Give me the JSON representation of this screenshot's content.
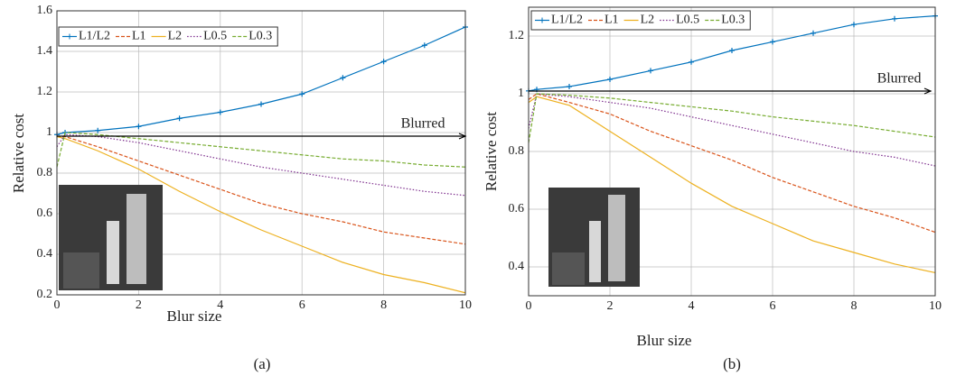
{
  "chart_data": [
    {
      "type": "line",
      "label": "(a)",
      "xlabel": "Blur size",
      "ylabel": "Relative cost",
      "annotation": "Blurred",
      "x": [
        0,
        0.2,
        1,
        2,
        3,
        4,
        5,
        6,
        7,
        8,
        9,
        10
      ],
      "xlim": [
        0,
        10
      ],
      "xticks": [
        0,
        2,
        4,
        6,
        8,
        10
      ],
      "ylim": [
        0.2,
        1.6
      ],
      "yticks": [
        0.2,
        0.4,
        0.6,
        0.8,
        1.0,
        1.2,
        1.4,
        1.6
      ],
      "grid": true,
      "legend": "top-left",
      "series": [
        {
          "name": "L1/L2",
          "color": "#0072bd",
          "dash": "solid",
          "marker": "+",
          "values": [
            0.99,
            1.0,
            1.01,
            1.03,
            1.07,
            1.1,
            1.14,
            1.19,
            1.27,
            1.35,
            1.43,
            1.52
          ]
        },
        {
          "name": "L1",
          "color": "#d95319",
          "dash": "dashed",
          "values": [
            0.98,
            0.98,
            0.93,
            0.86,
            0.79,
            0.72,
            0.65,
            0.6,
            0.56,
            0.51,
            0.48,
            0.45
          ]
        },
        {
          "name": "L2",
          "color": "#edb120",
          "dash": "solid",
          "values": [
            0.98,
            0.97,
            0.91,
            0.82,
            0.71,
            0.61,
            0.52,
            0.44,
            0.36,
            0.3,
            0.26,
            0.21
          ]
        },
        {
          "name": "L0.5",
          "color": "#7e2f8e",
          "dash": "dotted",
          "values": [
            0.93,
            0.99,
            0.98,
            0.95,
            0.91,
            0.87,
            0.83,
            0.8,
            0.77,
            0.74,
            0.71,
            0.69
          ]
        },
        {
          "name": "L0.3",
          "color": "#77ac30",
          "dash": "dashed",
          "values": [
            0.83,
            1.0,
            0.99,
            0.97,
            0.95,
            0.93,
            0.91,
            0.89,
            0.87,
            0.86,
            0.84,
            0.83
          ]
        }
      ]
    },
    {
      "type": "line",
      "label": "(b)",
      "xlabel": "Blur size",
      "ylabel": "Relative cost",
      "annotation": "Blurred",
      "x": [
        0,
        0.2,
        1,
        2,
        3,
        4,
        5,
        6,
        7,
        8,
        9,
        10
      ],
      "xlim": [
        0,
        10
      ],
      "xticks": [
        0,
        2,
        4,
        6,
        8,
        10
      ],
      "ylim": [
        0.3,
        1.3
      ],
      "yticks": [
        0.4,
        0.6,
        0.8,
        1.0,
        1.2
      ],
      "grid": true,
      "legend": "top-left",
      "series": [
        {
          "name": "L1/L2",
          "color": "#0072bd",
          "dash": "solid",
          "marker": "+",
          "values": [
            1.01,
            1.015,
            1.025,
            1.05,
            1.08,
            1.11,
            1.15,
            1.18,
            1.21,
            1.24,
            1.26,
            1.27
          ]
        },
        {
          "name": "L1",
          "color": "#d95319",
          "dash": "dashed",
          "values": [
            0.98,
            1.0,
            0.97,
            0.93,
            0.87,
            0.82,
            0.77,
            0.71,
            0.66,
            0.61,
            0.57,
            0.52
          ]
        },
        {
          "name": "L2",
          "color": "#edb120",
          "dash": "solid",
          "values": [
            0.97,
            0.99,
            0.96,
            0.87,
            0.78,
            0.69,
            0.61,
            0.55,
            0.49,
            0.45,
            0.41,
            0.38
          ]
        },
        {
          "name": "L0.5",
          "color": "#7e2f8e",
          "dash": "dotted",
          "values": [
            0.88,
            1.0,
            0.99,
            0.97,
            0.95,
            0.92,
            0.89,
            0.86,
            0.83,
            0.8,
            0.78,
            0.75
          ]
        },
        {
          "name": "L0.3",
          "color": "#77ac30",
          "dash": "dashed",
          "values": [
            0.83,
            1.0,
            0.995,
            0.985,
            0.97,
            0.955,
            0.94,
            0.92,
            0.905,
            0.89,
            0.87,
            0.85
          ]
        }
      ]
    }
  ]
}
